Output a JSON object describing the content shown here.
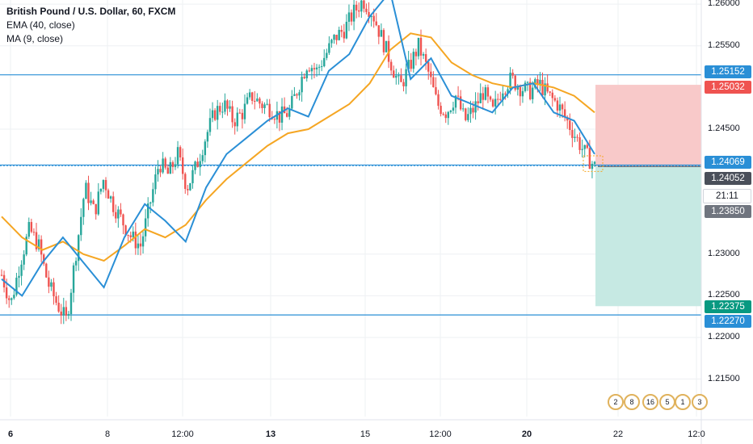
{
  "legend": {
    "title": "British Pound / U.S. Dollar, 60, FXCM",
    "ema": "EMA (40, close)",
    "ma": "MA (9, close)"
  },
  "colors": {
    "up": "#26a69a",
    "down": "#ef5350",
    "ema": "#f5a623",
    "ma": "#2a8fd6",
    "hline": "#2962ff",
    "stop_zone": "#f8c9c9",
    "target_zone": "#c6e9e3",
    "grid": "#eef0f3"
  },
  "price_axis": {
    "ticks": [
      "1.26000",
      "1.25500",
      "1.24500",
      "1.23000",
      "1.22500",
      "1.22000",
      "1.21500"
    ]
  },
  "price_tags": [
    {
      "label": "1.25152",
      "color": "#2a8fd6"
    },
    {
      "label": "1.25032",
      "color": "#ef5350"
    },
    {
      "label": "1.24069",
      "color": "#2a8fd6"
    },
    {
      "label": "1.24052",
      "color": "#4a4f5a"
    },
    {
      "label": "21:11",
      "color": "#ffffff"
    },
    {
      "label": "1.23850",
      "color": "#70757f"
    },
    {
      "label": "1.22375",
      "color": "#089981"
    },
    {
      "label": "1.22270",
      "color": "#2a8fd6"
    }
  ],
  "time_axis": {
    "labels": [
      {
        "text": "6",
        "bold": true
      },
      {
        "text": "8",
        "bold": false
      },
      {
        "text": "12:00",
        "bold": false
      },
      {
        "text": "13",
        "bold": true
      },
      {
        "text": "15",
        "bold": false
      },
      {
        "text": "12:00",
        "bold": false
      },
      {
        "text": "20",
        "bold": true
      },
      {
        "text": "22",
        "bold": false
      },
      {
        "text": "12:0",
        "bold": false
      }
    ]
  },
  "event_badges": [
    "2",
    "8",
    "16",
    "5",
    "1",
    "3"
  ],
  "chart_data": {
    "type": "candlestick",
    "symbol": "GBPUSD",
    "timeframe": "60",
    "ylim": [
      1.2105,
      1.2605
    ],
    "horizontal_lines": [
      1.25152,
      1.24069,
      1.2227
    ],
    "position": {
      "entry": 1.24052,
      "stop": 1.25032,
      "target": 1.22375
    },
    "price_path": [
      1.2275,
      1.224,
      1.229,
      1.233,
      1.231,
      1.2265,
      1.224,
      1.222,
      1.23,
      1.238,
      1.235,
      1.239,
      1.236,
      1.234,
      1.232,
      1.231,
      1.236,
      1.241,
      1.2395,
      1.242,
      1.238,
      1.2405,
      1.244,
      1.247,
      1.248,
      1.246,
      1.247,
      1.249,
      1.248,
      1.2475,
      1.2465,
      1.247,
      1.25,
      1.253,
      1.252,
      1.254,
      1.256,
      1.257,
      1.259,
      1.2605,
      1.259,
      1.256,
      1.253,
      1.25,
      1.2525,
      1.255,
      1.252,
      1.248,
      1.247,
      1.249,
      1.246,
      1.2475,
      1.2495,
      1.247,
      1.25,
      1.251,
      1.25,
      1.2495,
      1.2505,
      1.249,
      1.248,
      1.246,
      1.244,
      1.242,
      1.2405
    ],
    "ema_path": [
      1.2345,
      1.232,
      1.2305,
      1.2315,
      1.23,
      1.2292,
      1.231,
      1.233,
      1.232,
      1.2335,
      1.2365,
      1.239,
      1.241,
      1.243,
      1.2445,
      1.245,
      1.2465,
      1.248,
      1.2505,
      1.2545,
      1.2565,
      1.256,
      1.253,
      1.2515,
      1.2505,
      1.25,
      1.2505,
      1.25,
      1.249,
      1.247
    ],
    "ma_path": [
      1.227,
      1.225,
      1.229,
      1.232,
      1.229,
      1.226,
      1.232,
      1.236,
      1.234,
      1.2315,
      1.238,
      1.242,
      1.244,
      1.246,
      1.2475,
      1.2465,
      1.252,
      1.254,
      1.2585,
      1.2615,
      1.251,
      1.2535,
      1.249,
      1.248,
      1.247,
      1.25,
      1.2505,
      1.247,
      1.246,
      1.242
    ]
  }
}
